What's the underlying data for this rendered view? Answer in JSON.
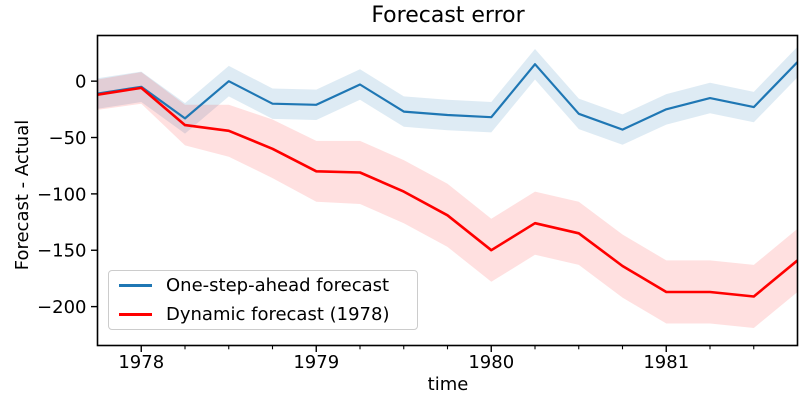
{
  "chart_data": {
    "type": "line",
    "title": "Forecast error",
    "xlabel": "time",
    "ylabel": "Forecast - Actual",
    "grid": false,
    "xlim": [
      1977.75,
      1981.75
    ],
    "ylim": [
      -234.5,
      40.5
    ],
    "x": [
      1977.75,
      1978.0,
      1978.25,
      1978.5,
      1978.75,
      1979.0,
      1979.25,
      1979.5,
      1979.75,
      1980.0,
      1980.25,
      1980.5,
      1980.75,
      1981.0,
      1981.25,
      1981.5,
      1981.75
    ],
    "series": [
      {
        "name": "One-step-ahead forecast",
        "color": "#1f77b4",
        "band_color": "rgba(31,119,180,0.15)",
        "line_width": 2.2,
        "values": [
          -11,
          -5,
          -33,
          0,
          -20,
          -21,
          -3,
          -27,
          -30,
          -32,
          15,
          -29,
          -43,
          -25,
          -15,
          -23,
          17
        ],
        "band_halfwidths": [
          13.5,
          13.5,
          13.5,
          13.5,
          13.5,
          13.5,
          13.5,
          13.5,
          13.5,
          13.5,
          13.5,
          13.5,
          13.5,
          13.5,
          13.5,
          13.5,
          13.5
        ]
      },
      {
        "name": "Dynamic forecast (1978)",
        "color": "#ff0000",
        "band_color": "rgba(255,0,0,0.12)",
        "line_width": 2.6,
        "values": [
          -12,
          -6,
          -39,
          -44,
          -60,
          -80,
          -81,
          -98,
          -119,
          -150,
          -126,
          -135,
          -164,
          -187,
          -187,
          -191,
          -159
        ],
        "band_halfwidths": [
          13.5,
          14,
          18,
          23,
          26,
          27,
          28,
          28,
          28,
          28,
          28,
          28,
          28,
          28,
          28,
          28,
          28
        ]
      }
    ],
    "xticks": {
      "major_values": [
        1978,
        1979,
        1980,
        1981
      ],
      "major_labels": [
        "1978",
        "1979",
        "1980",
        "1981"
      ],
      "minor_values": [
        1978.25,
        1978.5,
        1978.75,
        1979.25,
        1979.5,
        1979.75,
        1980.25,
        1980.5,
        1980.75,
        1981.25,
        1981.5
      ]
    },
    "yticks": {
      "major_values": [
        0,
        -50,
        -100,
        -150,
        -200
      ],
      "major_labels": [
        "0",
        "−50",
        "−100",
        "−150",
        "−200"
      ]
    },
    "legend_position": "lower left",
    "axes_color": "#000000",
    "background_color": "#ffffff"
  }
}
